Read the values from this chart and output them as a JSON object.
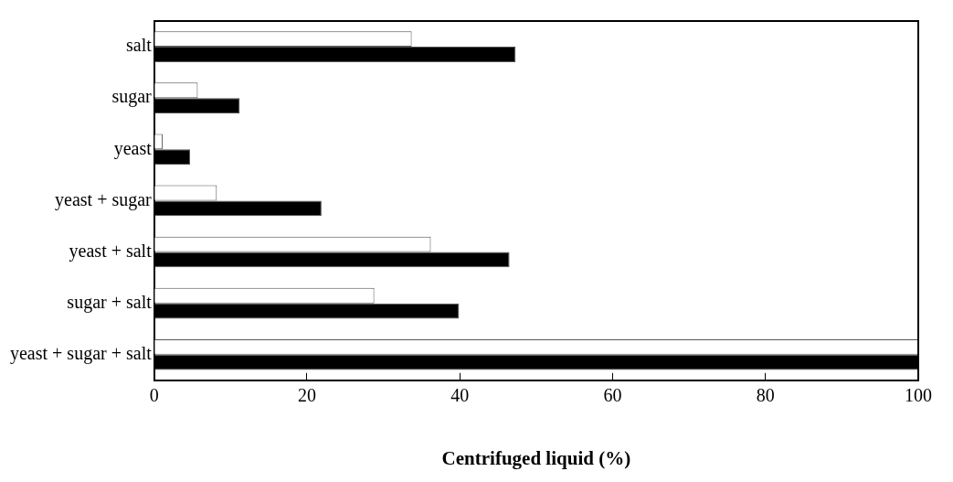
{
  "chart_data": {
    "type": "bar",
    "orientation": "horizontal",
    "xlabel": "Centrifuged liquid (%)",
    "categories": [
      "salt",
      "sugar",
      "yeast",
      "yeast + sugar",
      "yeast + salt",
      "sugar + salt",
      "yeast + sugar + salt"
    ],
    "series": [
      {
        "color": "#ffffff",
        "values": [
          33.7,
          5.7,
          1.1,
          8.2,
          36.2,
          28.8,
          100
        ]
      },
      {
        "color": "#000000",
        "values": [
          47.3,
          11.2,
          4.7,
          21.9,
          46.5,
          39.9,
          100
        ]
      }
    ],
    "xlim": [
      0,
      100
    ],
    "xticks": [
      0,
      20,
      40,
      60,
      80,
      100
    ],
    "grid": false,
    "legend": false
  }
}
